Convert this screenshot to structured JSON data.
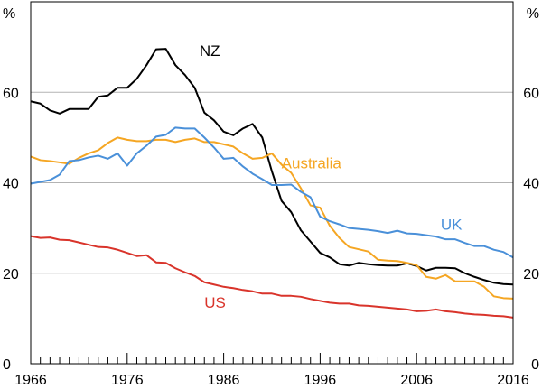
{
  "chart_data": {
    "type": "line",
    "title": "",
    "xlabel": "",
    "ylabel": "%",
    "ylabel_right": "%",
    "xlim": [
      1966,
      2016
    ],
    "ylim": [
      0,
      80
    ],
    "y_ticks": [
      0,
      20,
      40,
      60
    ],
    "x_tick_labels": [
      1966,
      1976,
      1986,
      1996,
      2006,
      2016
    ],
    "grid": true,
    "series": [
      {
        "name": "NZ",
        "color": "#000000",
        "x": [
          1966,
          1967,
          1968,
          1969,
          1970,
          1971,
          1972,
          1973,
          1974,
          1975,
          1976,
          1977,
          1978,
          1979,
          1980,
          1981,
          1982,
          1983,
          1984,
          1985,
          1986,
          1987,
          1988,
          1989,
          1990,
          1991,
          1992,
          1993,
          1994,
          1995,
          1996,
          1997,
          1998,
          1999,
          2000,
          2001,
          2002,
          2003,
          2004,
          2005,
          2006,
          2007,
          2008,
          2009,
          2010,
          2011,
          2012,
          2013,
          2014,
          2015,
          2016
        ],
        "values": [
          58,
          57.5,
          56,
          55.3,
          56.3,
          56.3,
          56.3,
          59,
          59.3,
          61,
          61,
          63,
          66,
          69.5,
          69.6,
          66,
          63.8,
          61,
          55.5,
          53.8,
          51.3,
          50.5,
          52,
          53,
          50,
          42.5,
          36,
          33.5,
          29.5,
          27,
          24.5,
          23.5,
          22,
          21.7,
          22.3,
          22,
          21.8,
          21.7,
          21.7,
          22.2,
          21.6,
          20.6,
          21.2,
          21.2,
          21.1,
          20,
          19.2,
          18.5,
          17.9,
          17.6,
          17.5
        ]
      },
      {
        "name": "Australia",
        "color": "#F5A623",
        "x": [
          1966,
          1967,
          1968,
          1969,
          1970,
          1971,
          1972,
          1973,
          1974,
          1975,
          1976,
          1977,
          1978,
          1979,
          1980,
          1981,
          1982,
          1983,
          1984,
          1985,
          1986,
          1987,
          1988,
          1989,
          1990,
          1991,
          1992,
          1993,
          1994,
          1995,
          1996,
          1997,
          1998,
          1999,
          2000,
          2001,
          2002,
          2003,
          2004,
          2005,
          2006,
          2007,
          2008,
          2009,
          2010,
          2011,
          2012,
          2013,
          2014,
          2015,
          2016
        ],
        "values": [
          45.8,
          45,
          44.8,
          44.5,
          44.2,
          45.5,
          46.5,
          47.2,
          48.8,
          50,
          49.5,
          49.2,
          49.2,
          49.5,
          49.5,
          49,
          49.5,
          49.8,
          49,
          49,
          48.5,
          48,
          46.5,
          45.3,
          45.5,
          46.5,
          44,
          42.2,
          38.8,
          35,
          34.5,
          30.5,
          27.8,
          25.8,
          25.3,
          24.8,
          23,
          22.8,
          22.7,
          22.3,
          21.8,
          19.2,
          18.8,
          19.6,
          18.2,
          18.2,
          18.2,
          17,
          14.9,
          14.5,
          14.4
        ]
      },
      {
        "name": "UK",
        "color": "#4A90D9",
        "x": [
          1966,
          1967,
          1968,
          1969,
          1970,
          1971,
          1972,
          1973,
          1974,
          1975,
          1976,
          1977,
          1978,
          1979,
          1980,
          1981,
          1982,
          1983,
          1984,
          1985,
          1986,
          1987,
          1988,
          1989,
          1990,
          1991,
          1992,
          1993,
          1994,
          1995,
          1996,
          1997,
          1998,
          1999,
          2000,
          2001,
          2002,
          2003,
          2004,
          2005,
          2006,
          2007,
          2008,
          2009,
          2010,
          2011,
          2012,
          2013,
          2014,
          2015,
          2016
        ],
        "values": [
          39.8,
          40.2,
          40.6,
          41.8,
          44.8,
          45,
          45.6,
          46,
          45.3,
          46.5,
          43.8,
          46.5,
          48.2,
          50.2,
          50.6,
          52.2,
          52,
          52,
          50,
          47.8,
          45.3,
          45.5,
          43.6,
          42,
          40.8,
          39.5,
          39.5,
          39.6,
          38,
          36.8,
          32.5,
          31.5,
          30.8,
          30,
          29.8,
          29.6,
          29.3,
          28.9,
          29.4,
          28.8,
          28.7,
          28.4,
          28.1,
          27.5,
          27.5,
          26.7,
          26,
          26,
          25.2,
          24.7,
          23.5
        ]
      },
      {
        "name": "US",
        "color": "#D9342B",
        "x": [
          1966,
          1967,
          1968,
          1969,
          1970,
          1971,
          1972,
          1973,
          1974,
          1975,
          1976,
          1977,
          1978,
          1979,
          1980,
          1981,
          1982,
          1983,
          1984,
          1985,
          1986,
          1987,
          1988,
          1989,
          1990,
          1991,
          1992,
          1993,
          1994,
          1995,
          1996,
          1997,
          1998,
          1999,
          2000,
          2001,
          2002,
          2003,
          2004,
          2005,
          2006,
          2007,
          2008,
          2009,
          2010,
          2011,
          2012,
          2013,
          2014,
          2015,
          2016
        ],
        "values": [
          28.2,
          27.8,
          27.9,
          27.4,
          27.3,
          26.8,
          26.3,
          25.8,
          25.7,
          25.2,
          24.5,
          23.8,
          24,
          22.4,
          22.3,
          21.1,
          20.2,
          19.4,
          18,
          17.5,
          17,
          16.7,
          16.3,
          16,
          15.5,
          15.5,
          15,
          15,
          14.8,
          14.3,
          13.9,
          13.5,
          13.3,
          13.3,
          12.9,
          12.8,
          12.6,
          12.4,
          12.2,
          12,
          11.6,
          11.7,
          12,
          11.6,
          11.4,
          11.1,
          10.9,
          10.8,
          10.6,
          10.5,
          10.2
        ]
      }
    ],
    "annotations": [
      {
        "text": "NZ",
        "series": "NZ"
      },
      {
        "text": "Australia",
        "series": "Australia"
      },
      {
        "text": "UK",
        "series": "UK"
      },
      {
        "text": "US",
        "series": "US"
      }
    ]
  }
}
